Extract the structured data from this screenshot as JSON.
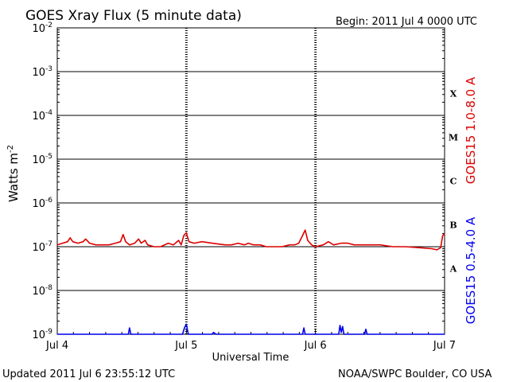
{
  "title": "GOES Xray Flux (5 minute data)",
  "begin_label": "Begin:  2011 Jul 4 0000 UTC",
  "updated_label": "Updated 2011 Jul  6 23:55:12 UTC",
  "credit_label": "NOAA/SWPC Boulder, CO USA",
  "colors": {
    "long": "#dd0000",
    "short": "#0000ee",
    "frame": "#000000"
  },
  "chart_data": {
    "type": "line",
    "title": "GOES Xray Flux (5 minute data)",
    "xlabel": "Universal Time",
    "ylabel_base": "Watts m",
    "ylabel_exp": "-2",
    "xlim": [
      0,
      3
    ],
    "ylim_exp": [
      -9,
      -2
    ],
    "y_scale": "log",
    "grid": true,
    "x_ticks": [
      {
        "pos": 0,
        "label": "Jul 4"
      },
      {
        "pos": 1,
        "label": "Jul 5"
      },
      {
        "pos": 2,
        "label": "Jul 6"
      },
      {
        "pos": 3,
        "label": "Jul 7"
      }
    ],
    "y_ticks": [
      {
        "exp": -9,
        "label": "10",
        "sup": "-9"
      },
      {
        "exp": -8,
        "label": "10",
        "sup": "-8"
      },
      {
        "exp": -7,
        "label": "10",
        "sup": "-7"
      },
      {
        "exp": -6,
        "label": "10",
        "sup": "-6"
      },
      {
        "exp": -5,
        "label": "10",
        "sup": "-5"
      },
      {
        "exp": -4,
        "label": "10",
        "sup": "-4"
      },
      {
        "exp": -3,
        "label": "10",
        "sup": "-3"
      },
      {
        "exp": -2,
        "label": "10",
        "sup": "-2"
      }
    ],
    "flare_classes": [
      {
        "label": "X",
        "exp": -3.5
      },
      {
        "label": "M",
        "exp": -4.5
      },
      {
        "label": "C",
        "exp": -5.5
      },
      {
        "label": "B",
        "exp": -6.5
      },
      {
        "label": "A",
        "exp": -7.5
      }
    ],
    "series": [
      {
        "name": "GOES15 1.0-8.0 A",
        "color": "#dd0000",
        "points": [
          [
            0.0,
            1.1e-07
          ],
          [
            0.04,
            1.2e-07
          ],
          [
            0.08,
            1.3e-07
          ],
          [
            0.1,
            1.6e-07
          ],
          [
            0.12,
            1.3e-07
          ],
          [
            0.16,
            1.2e-07
          ],
          [
            0.2,
            1.3e-07
          ],
          [
            0.22,
            1.5e-07
          ],
          [
            0.25,
            1.2e-07
          ],
          [
            0.3,
            1.1e-07
          ],
          [
            0.4,
            1.1e-07
          ],
          [
            0.45,
            1.2e-07
          ],
          [
            0.49,
            1.3e-07
          ],
          [
            0.51,
            1.9e-07
          ],
          [
            0.53,
            1.3e-07
          ],
          [
            0.56,
            1.1e-07
          ],
          [
            0.6,
            1.2e-07
          ],
          [
            0.63,
            1.5e-07
          ],
          [
            0.65,
            1.2e-07
          ],
          [
            0.68,
            1.4e-07
          ],
          [
            0.7,
            1.1e-07
          ],
          [
            0.75,
            1e-07
          ],
          [
            0.8,
            1e-07
          ],
          [
            0.86,
            1.2e-07
          ],
          [
            0.9,
            1.1e-07
          ],
          [
            0.94,
            1.4e-07
          ],
          [
            0.96,
            1.1e-07
          ],
          [
            0.98,
            1.8e-07
          ],
          [
            1.0,
            2.1e-07
          ],
          [
            1.02,
            1.3e-07
          ],
          [
            1.06,
            1.2e-07
          ],
          [
            1.12,
            1.3e-07
          ],
          [
            1.2,
            1.2e-07
          ],
          [
            1.3,
            1.1e-07
          ],
          [
            1.35,
            1.1e-07
          ],
          [
            1.4,
            1.2e-07
          ],
          [
            1.45,
            1.1e-07
          ],
          [
            1.48,
            1.2e-07
          ],
          [
            1.52,
            1.1e-07
          ],
          [
            1.57,
            1.1e-07
          ],
          [
            1.62,
            1e-07
          ],
          [
            1.68,
            1e-07
          ],
          [
            1.74,
            1e-07
          ],
          [
            1.8,
            1.1e-07
          ],
          [
            1.84,
            1.1e-07
          ],
          [
            1.87,
            1.2e-07
          ],
          [
            1.9,
            1.8e-07
          ],
          [
            1.92,
            2.4e-07
          ],
          [
            1.94,
            1.4e-07
          ],
          [
            1.97,
            1.1e-07
          ],
          [
            2.0,
            1e-07
          ],
          [
            2.06,
            1.1e-07
          ],
          [
            2.1,
            1.3e-07
          ],
          [
            2.14,
            1.1e-07
          ],
          [
            2.2,
            1.2e-07
          ],
          [
            2.25,
            1.2e-07
          ],
          [
            2.3,
            1.1e-07
          ],
          [
            2.4,
            1.1e-07
          ],
          [
            2.5,
            1.1e-07
          ],
          [
            2.6,
            1e-07
          ],
          [
            2.7,
            1e-07
          ],
          [
            2.8,
            9.5e-08
          ],
          [
            2.9,
            9e-08
          ],
          [
            2.94,
            8.5e-08
          ],
          [
            2.97,
            9.5e-08
          ],
          [
            2.985,
            1.8e-07
          ],
          [
            3.0,
            2e-07
          ]
        ]
      },
      {
        "name": "GOES15 0.5-4.0 A",
        "color": "#0000ee",
        "points": [
          [
            0.0,
            8e-10
          ],
          [
            0.55,
            8e-10
          ],
          [
            0.56,
            1.4e-09
          ],
          [
            0.57,
            8e-10
          ],
          [
            0.97,
            8e-10
          ],
          [
            0.985,
            1.4e-09
          ],
          [
            1.0,
            1.7e-09
          ],
          [
            1.015,
            8e-10
          ],
          [
            1.2,
            8e-10
          ],
          [
            1.21,
            1.1e-09
          ],
          [
            1.23,
            8e-10
          ],
          [
            1.9,
            8e-10
          ],
          [
            1.91,
            1.4e-09
          ],
          [
            1.92,
            8e-10
          ],
          [
            2.18,
            8e-10
          ],
          [
            2.19,
            1.6e-09
          ],
          [
            2.2,
            1.1e-09
          ],
          [
            2.21,
            1.5e-09
          ],
          [
            2.22,
            8e-10
          ],
          [
            2.38,
            8e-10
          ],
          [
            2.39,
            1.3e-09
          ],
          [
            2.4,
            8e-10
          ],
          [
            3.0,
            8e-10
          ]
        ]
      }
    ]
  }
}
